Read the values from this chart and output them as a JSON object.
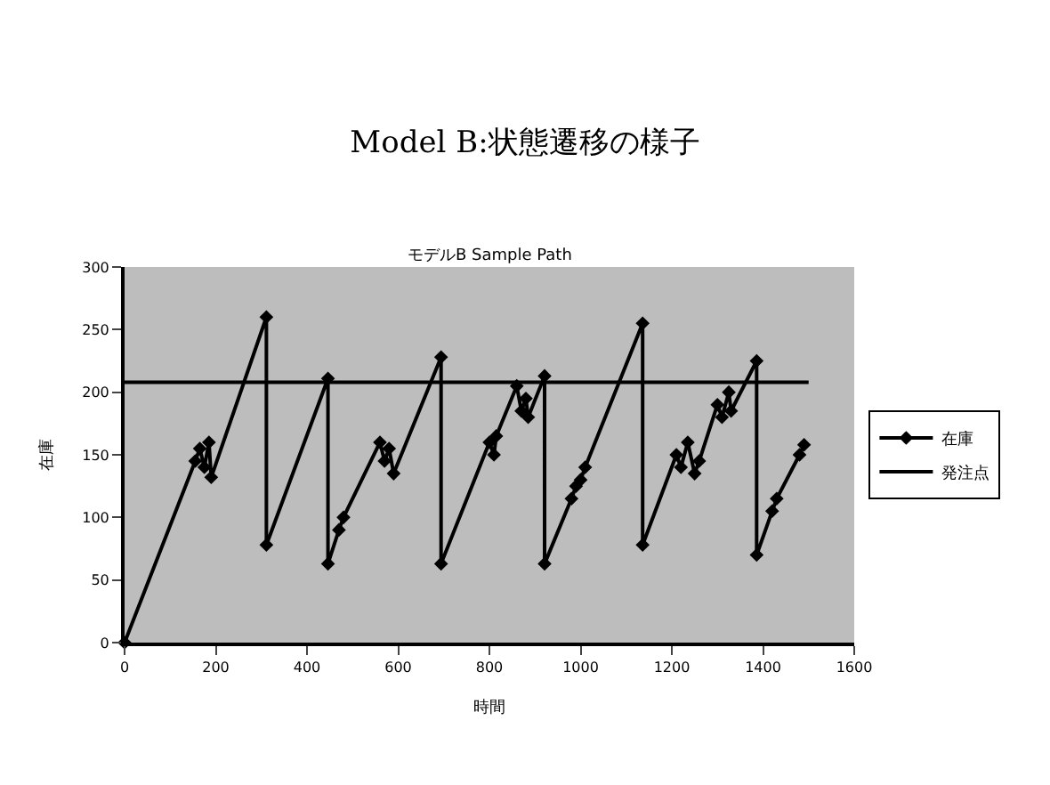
{
  "chart_data": {
    "type": "line",
    "title": "Model B:状態遷移の様子",
    "subtitle": "モデルB Sample Path",
    "xlabel": "時間",
    "ylabel": "在庫",
    "xlim": [
      0,
      1600
    ],
    "xticks": [
      0,
      200,
      400,
      600,
      800,
      1000,
      1200,
      1400,
      1600
    ],
    "ylim": [
      0,
      300
    ],
    "yticks": [
      0,
      50,
      100,
      150,
      200,
      250,
      300
    ],
    "grid": false,
    "legend": "right",
    "marker": "diamond",
    "line_style": "solid",
    "series": [
      {
        "name": "在庫",
        "color": "#000000",
        "x": [
          0,
          155,
          165,
          175,
          185,
          190,
          311,
          311,
          446,
          446,
          470,
          480,
          560,
          570,
          580,
          590,
          694,
          694,
          800,
          810,
          815,
          860,
          870,
          880,
          885,
          921,
          921,
          980,
          990,
          1000,
          1010,
          1136,
          1136,
          1210,
          1220,
          1235,
          1250,
          1260,
          1300,
          1310,
          1325,
          1330,
          1386,
          1386,
          1420,
          1430,
          1480,
          1490
        ],
        "values": [
          0,
          145,
          155,
          140,
          160,
          132,
          260,
          78,
          211,
          63,
          90,
          100,
          160,
          145,
          155,
          135,
          228,
          63,
          160,
          150,
          165,
          205,
          185,
          195,
          180,
          213,
          63,
          115,
          125,
          130,
          140,
          255,
          78,
          150,
          140,
          160,
          135,
          145,
          190,
          180,
          200,
          185,
          225,
          70,
          105,
          115,
          150,
          158
        ]
      },
      {
        "name": "発注点",
        "color": "#000000",
        "x": [
          0,
          1500
        ],
        "values": [
          208,
          208
        ],
        "marker": "none"
      }
    ]
  }
}
